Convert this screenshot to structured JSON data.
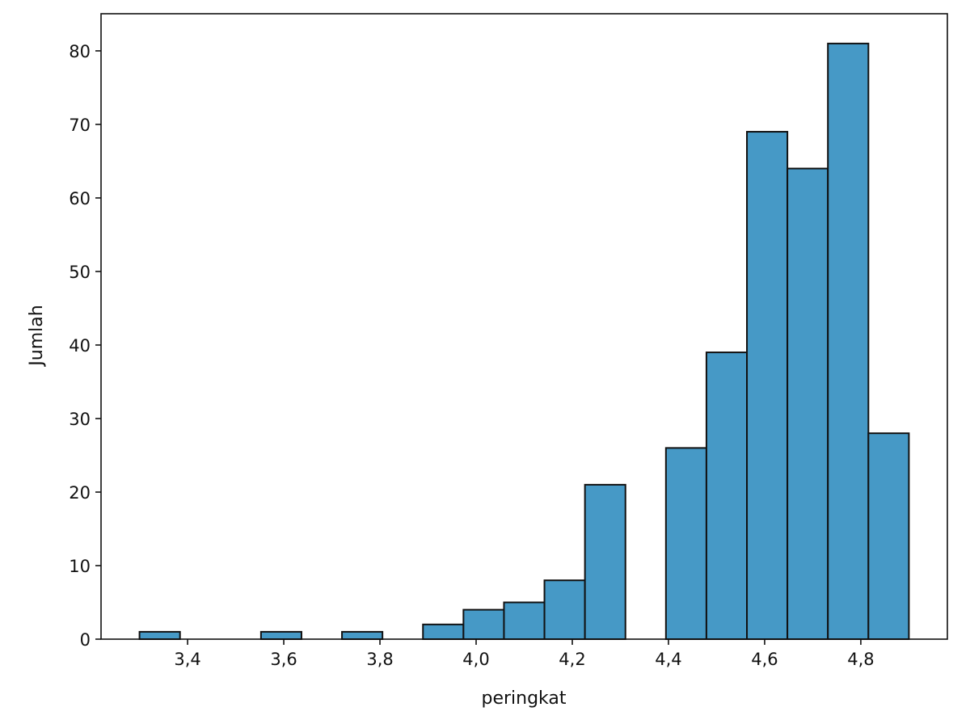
{
  "chart_data": {
    "type": "bar",
    "subtype": "histogram",
    "title": "",
    "xlabel": "peringkat",
    "ylabel": "Jumlah",
    "bin_range": [
      3.3,
      4.9
    ],
    "bin_count": 19,
    "values": [
      1,
      0,
      0,
      1,
      0,
      1,
      0,
      2,
      4,
      5,
      8,
      21,
      0,
      26,
      39,
      69,
      64,
      81,
      28
    ],
    "xlim": [
      3.22,
      4.98
    ],
    "ylim": [
      0,
      85.05
    ],
    "xticks": [
      3.4,
      3.6,
      3.8,
      4.0,
      4.2,
      4.4,
      4.6,
      4.8
    ],
    "xtick_labels": [
      "3,4",
      "3,6",
      "3,8",
      "4,0",
      "4,2",
      "4,4",
      "4,6",
      "4,8"
    ],
    "yticks": [
      0,
      10,
      20,
      30,
      40,
      50,
      60,
      70,
      80
    ],
    "ytick_labels": [
      "0",
      "10",
      "20",
      "30",
      "40",
      "50",
      "60",
      "70",
      "80"
    ],
    "grid": false,
    "bar_color": "#4699c6",
    "edge_color": "#111111"
  }
}
